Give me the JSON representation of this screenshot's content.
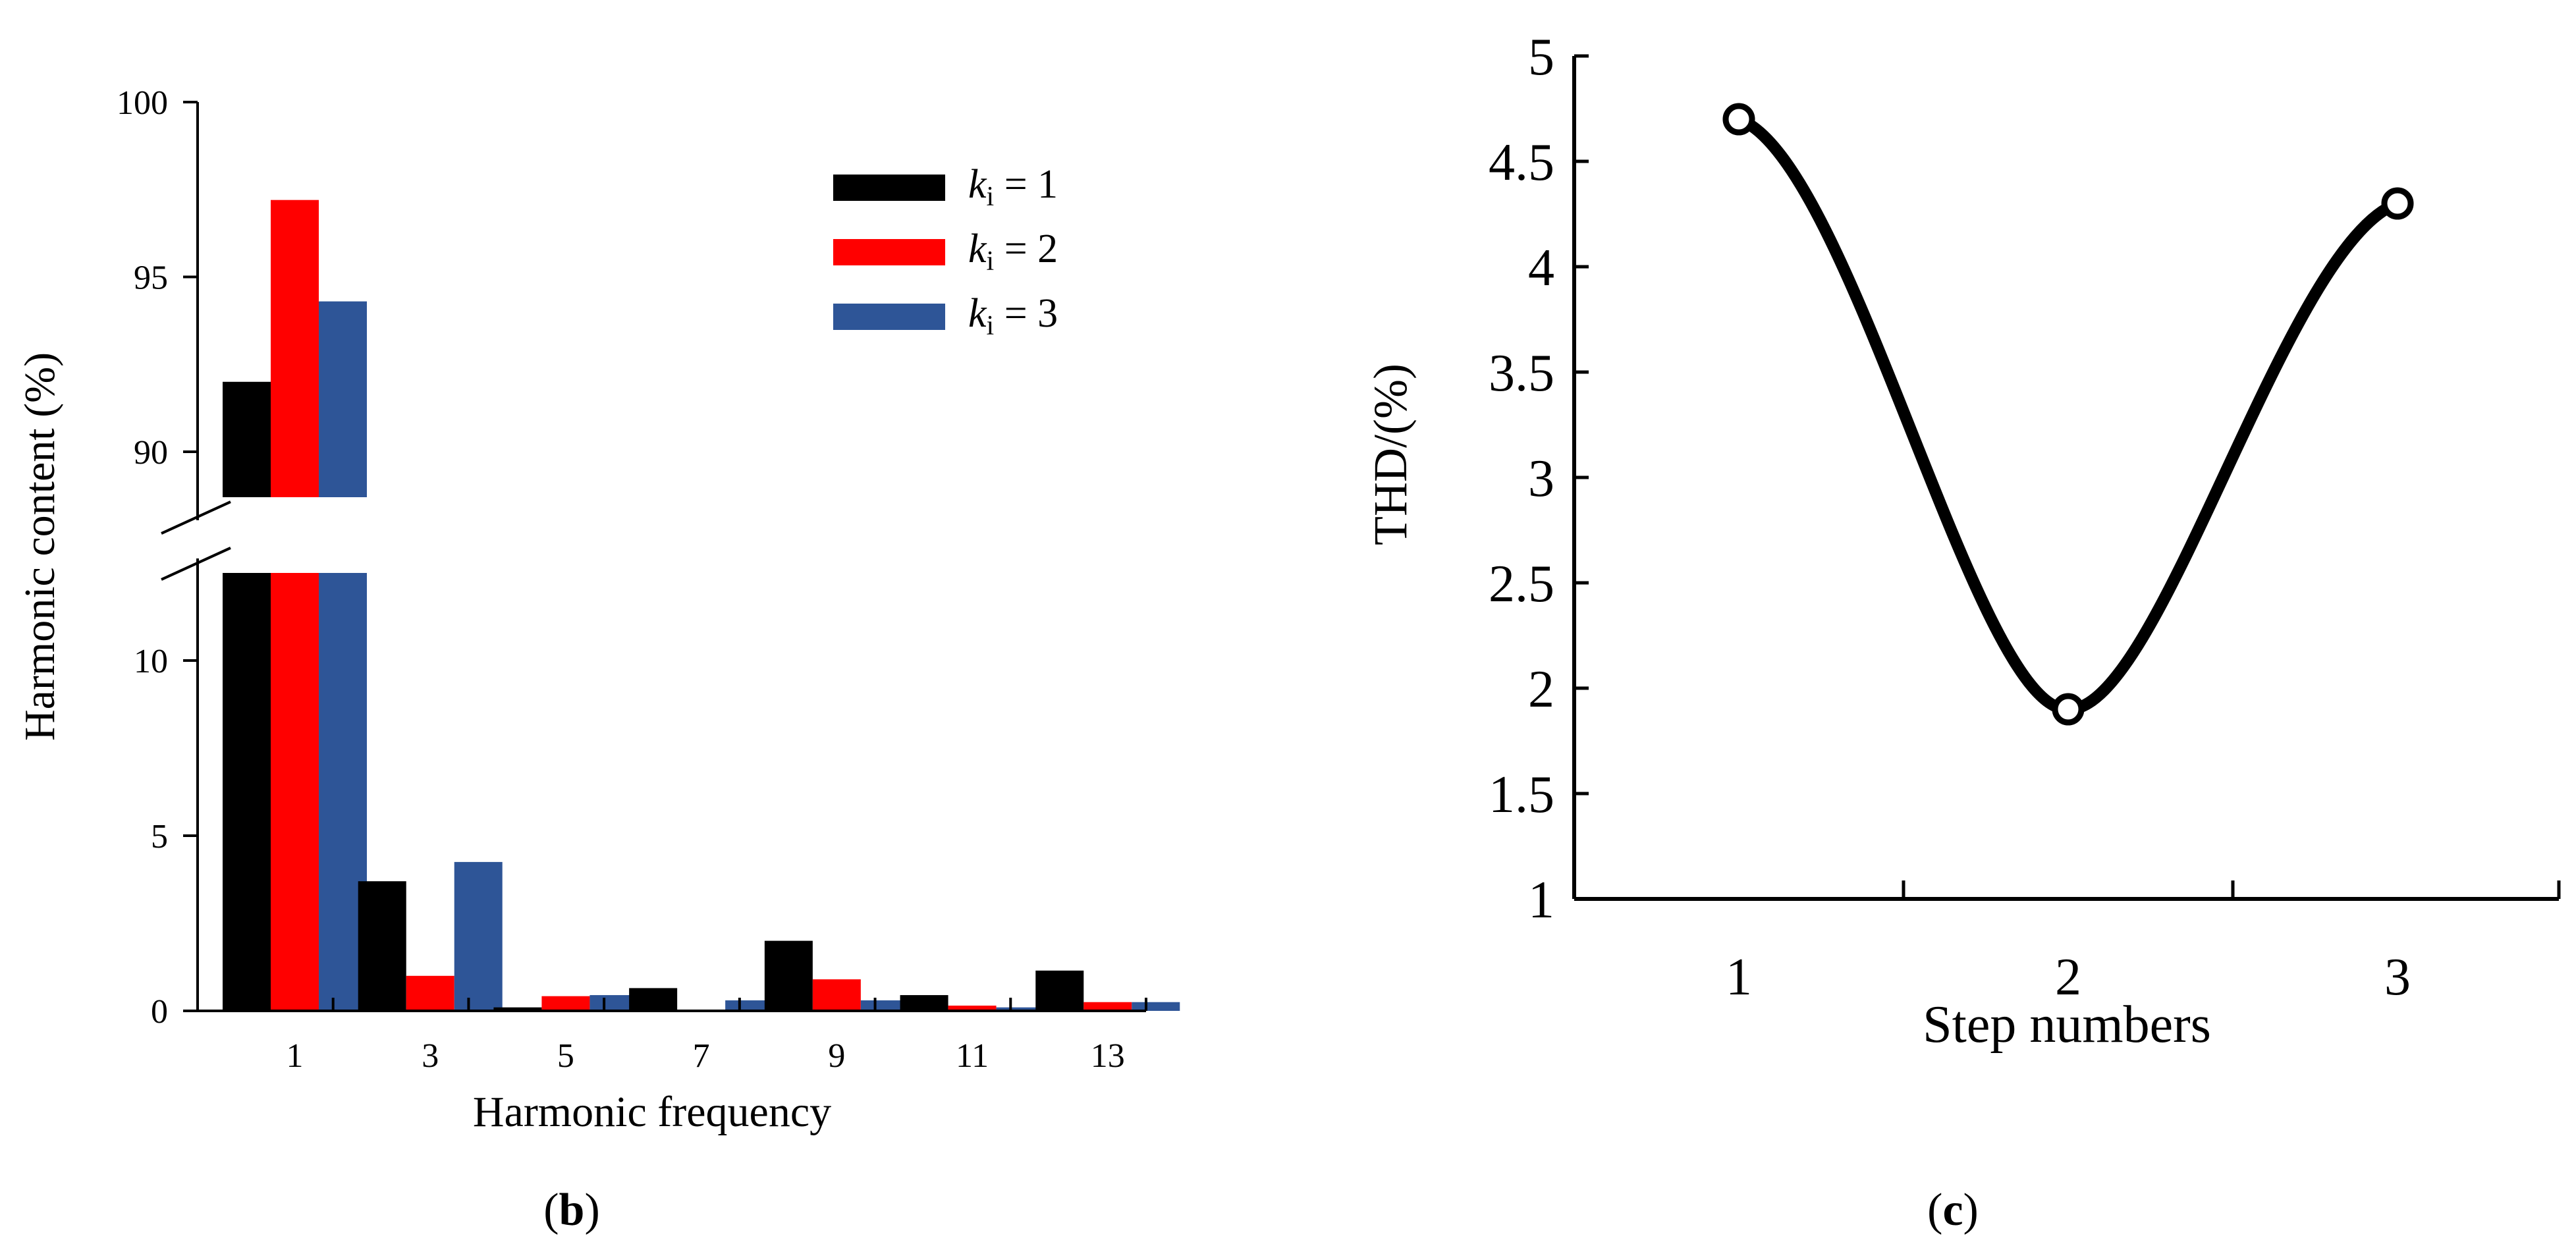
{
  "chart_data": [
    {
      "type": "bar",
      "panel_label": "(b)",
      "panel_letter": "b",
      "xlabel": "Harmonic frequency",
      "ylabel": "Harmonic content (%)",
      "categories": [
        "1",
        "3",
        "5",
        "7",
        "9",
        "11",
        "13"
      ],
      "y_axis_break": true,
      "y_ticks_lower": [
        "0",
        "5",
        "10"
      ],
      "y_ticks_upper": [
        "90",
        "95",
        "100"
      ],
      "ylim_lower": [
        0,
        12.5
      ],
      "ylim_upper": [
        88.7,
        100
      ],
      "legend_position": "top-right",
      "series": [
        {
          "name": "k",
          "name_sub": "i",
          "name_rest": " = 1",
          "color": "#000000",
          "values": [
            92.0,
            3.7,
            0.1,
            0.65,
            2.0,
            0.45,
            1.15
          ]
        },
        {
          "name": "k",
          "name_sub": "i",
          "name_rest": " = 2",
          "color": "#ff0000",
          "values": [
            97.2,
            1.0,
            0.42,
            0.0,
            0.9,
            0.15,
            0.25
          ]
        },
        {
          "name": "k",
          "name_sub": "i",
          "name_rest": " = 3",
          "color": "#2e5597",
          "values": [
            94.3,
            4.25,
            0.45,
            0.3,
            0.3,
            0.1,
            0.25
          ]
        }
      ]
    },
    {
      "type": "line",
      "panel_label": "(c)",
      "panel_letter": "c",
      "xlabel": "Step numbers",
      "ylabel": "THD/(%)",
      "x": [
        "1",
        "2",
        "3"
      ],
      "y_ticks": [
        "1",
        "1.5",
        "2",
        "2.5",
        "3",
        "3.5",
        "4",
        "4.5",
        "5"
      ],
      "ylim": [
        1,
        5
      ],
      "series": [
        {
          "values": [
            4.7,
            1.9,
            4.3
          ],
          "color": "#000000"
        }
      ]
    }
  ]
}
